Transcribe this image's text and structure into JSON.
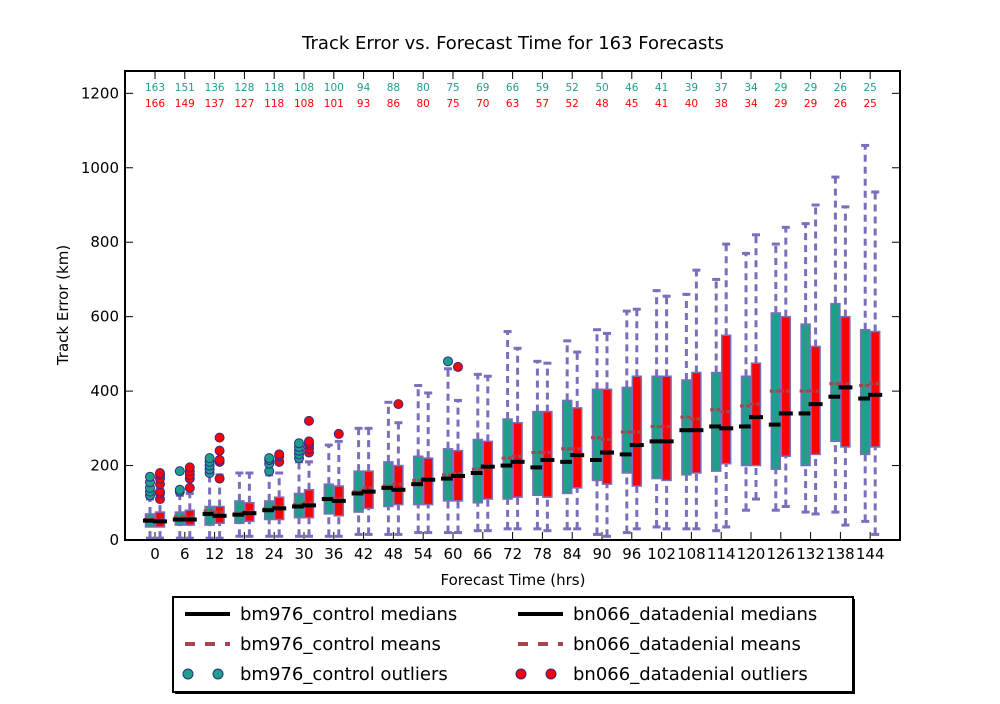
{
  "chart_data": {
    "type": "boxplot",
    "title": "Track Error vs. Forecast Time for 163 Forecasts",
    "xlabel": "Forecast Time (hrs)",
    "ylabel": "Track Error (km)",
    "ylim": [
      0,
      1260
    ],
    "yticks": [
      0,
      200,
      400,
      600,
      800,
      1000,
      1200
    ],
    "grid": false,
    "legend_placement": "bottom-center",
    "categories": [
      "0",
      "6",
      "12",
      "18",
      "24",
      "30",
      "36",
      "42",
      "48",
      "54",
      "60",
      "66",
      "72",
      "78",
      "84",
      "90",
      "96",
      "102",
      "108",
      "114",
      "120",
      "126",
      "132",
      "138",
      "144"
    ],
    "series": [
      {
        "name": "bm976_control",
        "color": "#1f9e89",
        "counts": [
          163,
          151,
          136,
          128,
          118,
          108,
          100,
          94,
          88,
          80,
          75,
          69,
          66,
          59,
          52,
          50,
          46,
          41,
          39,
          37,
          34,
          29,
          29,
          26,
          25
        ],
        "q1": [
          35,
          40,
          40,
          45,
          55,
          60,
          70,
          75,
          90,
          95,
          105,
          100,
          110,
          120,
          125,
          160,
          180,
          165,
          175,
          185,
          200,
          190,
          200,
          265,
          230
        ],
        "q3": [
          70,
          75,
          90,
          105,
          105,
          125,
          150,
          185,
          210,
          225,
          245,
          270,
          325,
          345,
          375,
          405,
          410,
          440,
          430,
          450,
          440,
          610,
          580,
          635,
          565
        ],
        "whisker_low": [
          5,
          5,
          5,
          10,
          10,
          10,
          10,
          15,
          15,
          20,
          20,
          25,
          30,
          30,
          30,
          15,
          20,
          35,
          30,
          25,
          80,
          80,
          75,
          75,
          50
        ],
        "whisker_high": [
          110,
          120,
          180,
          180,
          175,
          210,
          255,
          300,
          370,
          415,
          460,
          445,
          560,
          480,
          535,
          565,
          615,
          670,
          660,
          700,
          770,
          795,
          850,
          975,
          1060
        ],
        "medians": [
          52,
          55,
          70,
          68,
          80,
          90,
          110,
          125,
          140,
          150,
          165,
          180,
          200,
          195,
          210,
          215,
          230,
          265,
          295,
          305,
          305,
          310,
          340,
          385,
          380
        ],
        "means": [
          55,
          62,
          78,
          72,
          85,
          95,
          112,
          130,
          145,
          160,
          175,
          190,
          220,
          235,
          245,
          275,
          290,
          305,
          330,
          350,
          360,
          400,
          400,
          420,
          415
        ],
        "outliers": [
          [
            120,
            130,
            140,
            155,
            170
          ],
          [
            130,
            135,
            185
          ],
          [
            180,
            190,
            200,
            210,
            220
          ],
          [],
          [
            185,
            205,
            215,
            220
          ],
          [
            220,
            230,
            240,
            250,
            260
          ],
          [],
          [],
          [],
          [],
          [
            480
          ],
          [],
          [],
          [],
          [],
          [],
          [],
          [],
          [],
          [],
          [],
          [],
          [],
          [],
          []
        ]
      },
      {
        "name": "bn066_datadenial",
        "color": "#ff0000",
        "counts": [
          166,
          149,
          137,
          127,
          118,
          108,
          101,
          93,
          86,
          80,
          75,
          70,
          63,
          57,
          52,
          48,
          45,
          41,
          40,
          38,
          34,
          29,
          29,
          26,
          25
        ],
        "q1": [
          35,
          40,
          45,
          50,
          55,
          60,
          65,
          85,
          95,
          95,
          105,
          110,
          115,
          115,
          140,
          150,
          145,
          160,
          180,
          205,
          200,
          225,
          230,
          250,
          250
        ],
        "q3": [
          75,
          80,
          90,
          100,
          115,
          135,
          145,
          185,
          200,
          220,
          240,
          265,
          315,
          345,
          355,
          405,
          440,
          440,
          450,
          550,
          475,
          600,
          520,
          600,
          560
        ],
        "whisker_low": [
          5,
          5,
          5,
          10,
          10,
          10,
          10,
          15,
          15,
          20,
          20,
          25,
          30,
          25,
          30,
          10,
          30,
          30,
          30,
          35,
          110,
          90,
          70,
          40,
          15
        ],
        "whisker_high": [
          110,
          125,
          175,
          180,
          180,
          210,
          265,
          300,
          315,
          395,
          375,
          440,
          515,
          475,
          505,
          555,
          620,
          655,
          725,
          795,
          820,
          840,
          900,
          895,
          935
        ],
        "medians": [
          50,
          55,
          65,
          72,
          85,
          93,
          105,
          130,
          135,
          162,
          172,
          197,
          210,
          215,
          228,
          235,
          255,
          265,
          295,
          300,
          330,
          340,
          365,
          410,
          390
        ],
        "means": [
          55,
          62,
          75,
          78,
          90,
          100,
          112,
          140,
          150,
          165,
          178,
          200,
          225,
          235,
          245,
          270,
          290,
          305,
          325,
          345,
          365,
          400,
          400,
          420,
          420
        ],
        "outliers": [
          [
            110,
            125,
            130,
            150,
            165,
            175,
            180
          ],
          [
            140,
            165,
            175,
            185,
            195
          ],
          [
            165,
            210,
            215,
            240,
            275
          ],
          [],
          [
            210,
            225,
            230
          ],
          [
            235,
            245,
            255,
            260,
            265,
            320
          ],
          [
            285
          ],
          [],
          [
            365
          ],
          [],
          [
            465
          ],
          [],
          [],
          [],
          [],
          [],
          [],
          [],
          [],
          [],
          [],
          [],
          [],
          [],
          []
        ]
      }
    ],
    "legend": [
      {
        "label": "bm976_control medians",
        "style": "median",
        "series": 0
      },
      {
        "label": "bn066_datadenial medians",
        "style": "median",
        "series": 1
      },
      {
        "label": "bm976_control means",
        "style": "mean",
        "series": 0
      },
      {
        "label": "bn066_datadenial means",
        "style": "mean",
        "series": 1
      },
      {
        "label": "bm976_control outliers",
        "style": "outlier",
        "series": 0
      },
      {
        "label": "bn066_datadenial outliers",
        "style": "outlier",
        "series": 1
      }
    ],
    "style_colors": {
      "median": "#000000",
      "mean": "#a84450",
      "whisker": "#7b6fbc",
      "outlier_edge": "#2c2c8c"
    }
  }
}
